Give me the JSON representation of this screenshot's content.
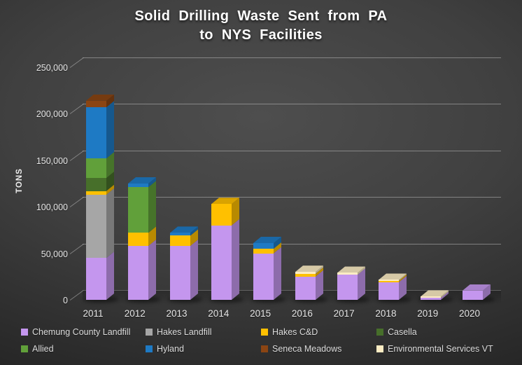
{
  "title": {
    "line1": "Solid Drilling Waste Sent from PA",
    "line2": "to NYS Facilities"
  },
  "y_axis": {
    "label": "TONS",
    "ticks": [
      "0",
      "50,000",
      "100,000",
      "150,000",
      "200,000",
      "250,000"
    ]
  },
  "chart_data": {
    "type": "bar",
    "stacked": true,
    "title": "Solid Drilling Waste Sent from PA to NYS Facilities",
    "ylabel": "TONS",
    "ylim": [
      0,
      250000
    ],
    "grid": true,
    "legend_position": "bottom",
    "categories": [
      "2011",
      "2012",
      "2013",
      "2014",
      "2015",
      "2016",
      "2017",
      "2018",
      "2019",
      "2020"
    ],
    "series": [
      {
        "name": "Chemung County Landfill",
        "color": "#c496ee",
        "values": [
          45000,
          58000,
          58000,
          80000,
          50000,
          25000,
          27000,
          19000,
          2000,
          10000
        ]
      },
      {
        "name": "Hakes Landfill",
        "color": "#a6a6a6",
        "values": [
          68000,
          0,
          0,
          0,
          0,
          0,
          0,
          0,
          0,
          0
        ]
      },
      {
        "name": "Hakes C&D",
        "color": "#ffc000",
        "values": [
          4000,
          14000,
          11000,
          23000,
          5000,
          3000,
          0,
          1500,
          0,
          0
        ]
      },
      {
        "name": "Casella",
        "color": "#476f2a",
        "values": [
          14000,
          0,
          0,
          0,
          0,
          0,
          0,
          0,
          0,
          0
        ]
      },
      {
        "name": "Allied",
        "color": "#61a03a",
        "values": [
          21000,
          49000,
          0,
          0,
          0,
          0,
          0,
          0,
          0,
          0
        ]
      },
      {
        "name": "Hyland",
        "color": "#1e7ac4",
        "values": [
          55000,
          4000,
          3000,
          0,
          6000,
          0,
          0,
          0,
          0,
          0
        ]
      },
      {
        "name": "Seneca Meadows",
        "color": "#8b4513",
        "values": [
          7000,
          0,
          0,
          0,
          0,
          0,
          0,
          0,
          0,
          0
        ]
      },
      {
        "name": "Environmental Services VT",
        "color": "#fcecc3",
        "values": [
          0,
          0,
          0,
          0,
          0,
          2000,
          2000,
          1000,
          1500,
          0
        ]
      }
    ]
  }
}
